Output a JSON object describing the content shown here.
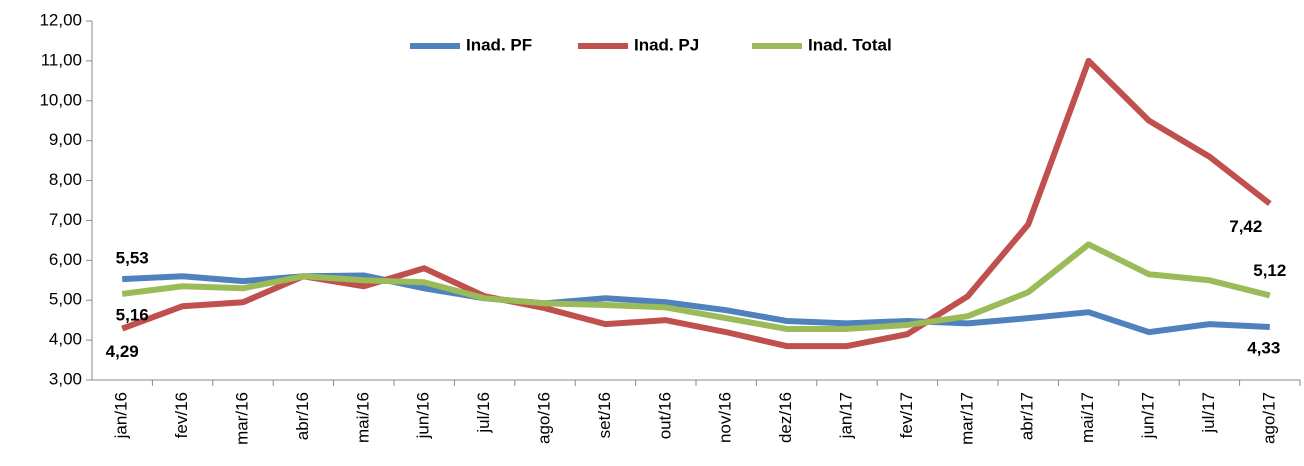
{
  "chart_data": {
    "type": "line",
    "categories": [
      "jan/16",
      "fev/16",
      "mar/16",
      "abr/16",
      "mai/16",
      "jun/16",
      "jul/16",
      "ago/16",
      "set/16",
      "out/16",
      "nov/16",
      "dez/16",
      "jan/17",
      "fev/17",
      "mar/17",
      "abr/17",
      "mai/17",
      "jun/17",
      "jul/17",
      "ago/17"
    ],
    "series": [
      {
        "name": "Inad. PF",
        "color": "#4f81bd",
        "values": [
          5.53,
          5.6,
          5.48,
          5.6,
          5.62,
          5.3,
          5.05,
          4.92,
          5.05,
          4.95,
          4.75,
          4.48,
          4.42,
          4.48,
          4.42,
          4.55,
          4.7,
          4.2,
          4.4,
          4.33
        ],
        "value_labels": [
          "5,53",
          null,
          null,
          null,
          null,
          null,
          null,
          null,
          null,
          null,
          null,
          null,
          null,
          null,
          null,
          null,
          null,
          null,
          null,
          "4,33"
        ]
      },
      {
        "name": "Inad. PJ",
        "color": "#c0504d",
        "values": [
          4.29,
          4.85,
          4.95,
          5.6,
          5.35,
          5.8,
          5.1,
          4.8,
          4.4,
          4.5,
          4.2,
          3.85,
          3.85,
          4.15,
          5.1,
          6.9,
          11.0,
          9.5,
          8.6,
          7.42
        ],
        "value_labels": [
          "4,29",
          null,
          null,
          null,
          null,
          null,
          null,
          null,
          null,
          null,
          null,
          null,
          null,
          null,
          null,
          null,
          null,
          null,
          null,
          "7,42"
        ]
      },
      {
        "name": "Inad. Total",
        "color": "#9bbb59",
        "values": [
          5.16,
          5.35,
          5.3,
          5.6,
          5.5,
          5.45,
          5.05,
          4.92,
          4.88,
          4.82,
          4.55,
          4.28,
          4.28,
          4.38,
          4.6,
          5.2,
          6.4,
          5.65,
          5.5,
          5.12
        ],
        "value_labels": [
          "5,16",
          null,
          null,
          null,
          null,
          null,
          null,
          null,
          null,
          null,
          null,
          null,
          null,
          null,
          null,
          null,
          null,
          null,
          null,
          "5,12"
        ]
      }
    ],
    "ylim": [
      3,
      12
    ],
    "yticks": [
      {
        "value": 3,
        "label": "3,00"
      },
      {
        "value": 4,
        "label": "4,00"
      },
      {
        "value": 5,
        "label": "5,00"
      },
      {
        "value": 6,
        "label": "6,00"
      },
      {
        "value": 7,
        "label": "7,00"
      },
      {
        "value": 8,
        "label": "8,00"
      },
      {
        "value": 9,
        "label": "9,00"
      },
      {
        "value": 10,
        "label": "10,00"
      },
      {
        "value": 11,
        "label": "11,00"
      },
      {
        "value": 12,
        "label": "12,00"
      }
    ],
    "grid": false,
    "legend": "top"
  }
}
